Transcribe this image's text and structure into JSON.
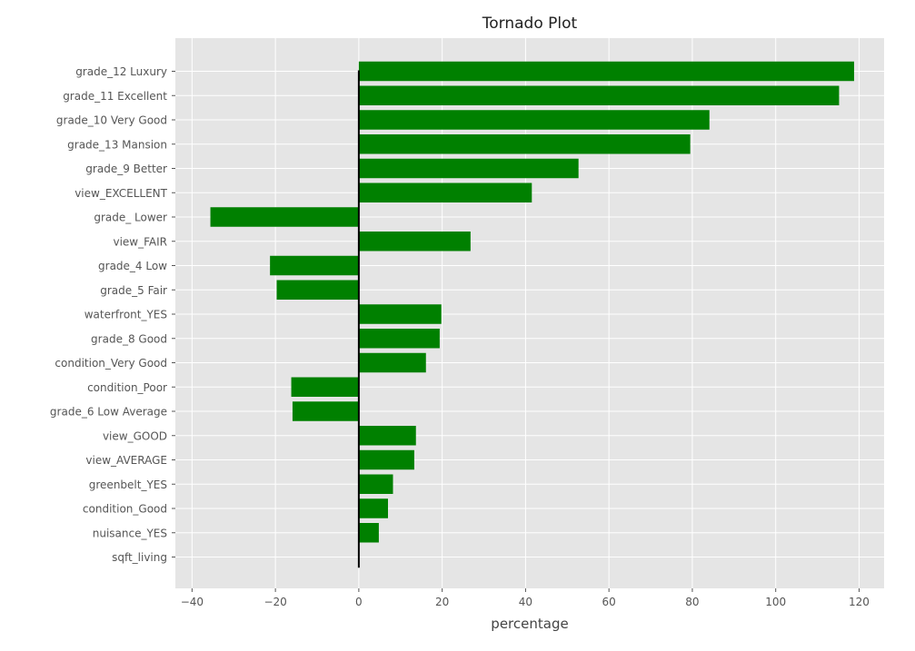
{
  "chart_data": {
    "type": "bar",
    "orientation": "horizontal",
    "title": "Tornado Plot",
    "xlabel": "percentage",
    "ylabel": "",
    "xlim": [
      -44,
      126
    ],
    "xticks": [
      -40,
      -20,
      0,
      20,
      40,
      60,
      80,
      100,
      120
    ],
    "xtick_labels": [
      "−40",
      "−20",
      "0",
      "20",
      "40",
      "60",
      "80",
      "100",
      "120"
    ],
    "grid": true,
    "style": "ggplot",
    "bar_color": "#008000",
    "zero_line": true,
    "categories": [
      "grade_12 Luxury",
      "grade_11 Excellent",
      "grade_10 Very Good",
      "grade_13 Mansion",
      "grade_9 Better",
      "view_EXCELLENT",
      "grade_ Lower",
      "view_FAIR",
      "grade_4 Low",
      "grade_5 Fair",
      "waterfront_YES",
      "grade_8 Good",
      "condition_Very Good",
      "condition_Poor",
      "grade_6 Low Average",
      "view_GOOD",
      "view_AVERAGE",
      "greenbelt_YES",
      "condition_Good",
      "nuisance_YES",
      "sqft_living"
    ],
    "values": [
      118.8,
      115.2,
      84.1,
      79.5,
      52.7,
      41.5,
      -35.6,
      26.8,
      -21.3,
      -19.7,
      19.8,
      19.4,
      16.1,
      -16.2,
      -15.9,
      13.7,
      13.3,
      8.2,
      7.0,
      4.8,
      0.05
    ]
  }
}
